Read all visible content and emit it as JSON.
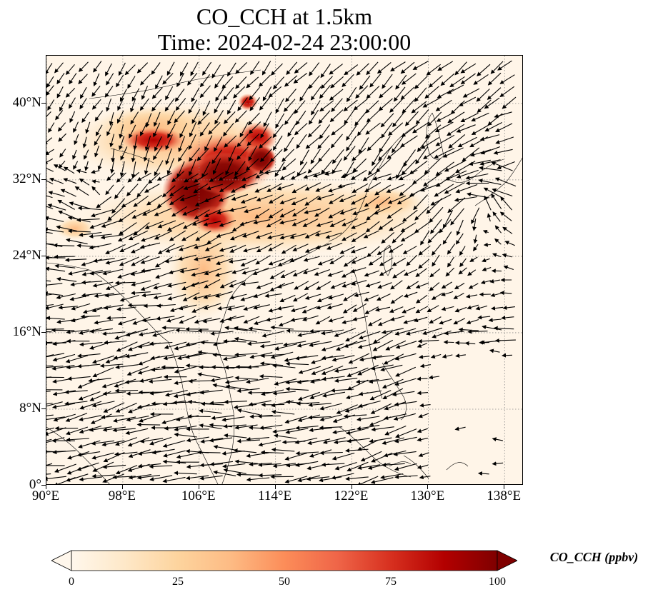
{
  "title": {
    "line1": "CO_CCH at 1.5km",
    "line2": "Time: 2024-02-24 23:00:00"
  },
  "map": {
    "lon_range": [
      90,
      140
    ],
    "lat_range": [
      0,
      45
    ],
    "lat_ticks": [
      "0°",
      "8°N",
      "16°N",
      "24°N",
      "32°N",
      "40°N"
    ],
    "lat_values": [
      0,
      8,
      16,
      24,
      32,
      40
    ],
    "lon_ticks": [
      "90°E",
      "98°E",
      "106°E",
      "114°E",
      "122°E",
      "130°E",
      "138°E"
    ],
    "lon_values": [
      90,
      98,
      106,
      114,
      122,
      130,
      138
    ],
    "gridlines": true,
    "background_color": "#fff5e8",
    "coastline_color": "#000000",
    "wind_vectors": true
  },
  "colorbar": {
    "label": "CO_CCH (ppbv)",
    "ticks": [
      "0",
      "25",
      "50",
      "75",
      "100"
    ],
    "tick_values": [
      0,
      25,
      50,
      75,
      100
    ],
    "range": [
      0,
      100
    ],
    "extend": "both",
    "colormap": "OrRd",
    "colors": [
      "#fff7ec",
      "#fee8c8",
      "#fdd49e",
      "#fdbb84",
      "#fc8d59",
      "#ef6548",
      "#d7301f",
      "#b30000",
      "#7f0000"
    ]
  }
}
